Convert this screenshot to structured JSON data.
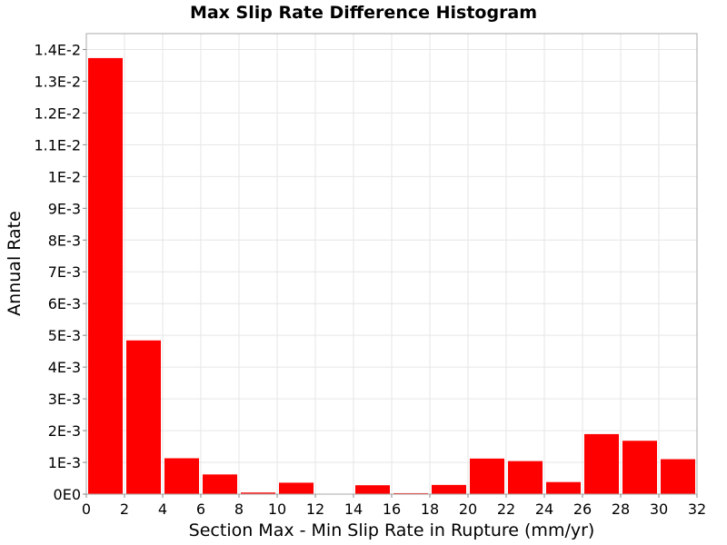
{
  "chart_data": {
    "type": "bar",
    "title": "Max Slip Rate Difference Histogram",
    "xlabel": "Section Max - Min Slip Rate in Rupture (mm/yr)",
    "ylabel": "Annual Rate",
    "xlim": [
      0,
      32
    ],
    "ylim": [
      0,
      0.0145
    ],
    "grid": true,
    "bar_color": "#ff0000",
    "bin_width": 2,
    "x_ticks": [
      "0",
      "2",
      "4",
      "6",
      "8",
      "10",
      "12",
      "14",
      "16",
      "18",
      "20",
      "22",
      "24",
      "26",
      "28",
      "30",
      "32"
    ],
    "y_ticks": [
      {
        "value": 0,
        "label": "0E0"
      },
      {
        "value": 0.001,
        "label": "1E-3"
      },
      {
        "value": 0.002,
        "label": "2E-3"
      },
      {
        "value": 0.003,
        "label": "3E-3"
      },
      {
        "value": 0.004,
        "label": "4E-3"
      },
      {
        "value": 0.005,
        "label": "5E-3"
      },
      {
        "value": 0.006,
        "label": "6E-3"
      },
      {
        "value": 0.007,
        "label": "7E-3"
      },
      {
        "value": 0.008,
        "label": "8E-3"
      },
      {
        "value": 0.009,
        "label": "9E-3"
      },
      {
        "value": 0.01,
        "label": "1E-2"
      },
      {
        "value": 0.011,
        "label": "1.1E-2"
      },
      {
        "value": 0.012,
        "label": "1.2E-2"
      },
      {
        "value": 0.013,
        "label": "1.3E-2"
      },
      {
        "value": 0.014,
        "label": "1.4E-2"
      }
    ],
    "bins": [
      {
        "x0": 0,
        "x1": 2,
        "value": 0.01373
      },
      {
        "x0": 2,
        "x1": 4,
        "value": 0.00484
      },
      {
        "x0": 4,
        "x1": 6,
        "value": 0.00113
      },
      {
        "x0": 6,
        "x1": 8,
        "value": 0.00062
      },
      {
        "x0": 8,
        "x1": 10,
        "value": 5e-05
      },
      {
        "x0": 10,
        "x1": 12,
        "value": 0.00036
      },
      {
        "x0": 12,
        "x1": 14,
        "value": 0.0
      },
      {
        "x0": 14,
        "x1": 16,
        "value": 0.00028
      },
      {
        "x0": 16,
        "x1": 18,
        "value": 3e-05
      },
      {
        "x0": 18,
        "x1": 20,
        "value": 0.00029
      },
      {
        "x0": 20,
        "x1": 22,
        "value": 0.00112
      },
      {
        "x0": 22,
        "x1": 24,
        "value": 0.00104
      },
      {
        "x0": 24,
        "x1": 26,
        "value": 0.00038
      },
      {
        "x0": 26,
        "x1": 28,
        "value": 0.00189
      },
      {
        "x0": 28,
        "x1": 30,
        "value": 0.00168
      },
      {
        "x0": 30,
        "x1": 32,
        "value": 0.0011
      }
    ]
  }
}
